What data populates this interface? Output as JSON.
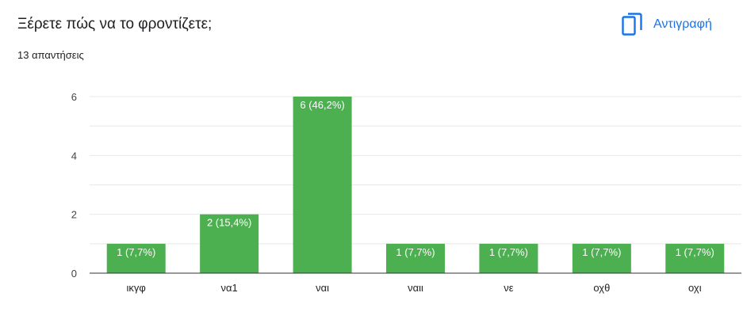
{
  "header": {
    "question": "Ξέρετε πώς να το φροντίζετε;",
    "responses": "13 απαντήσεις",
    "copy_label": "Αντιγραφή",
    "copy_icon": "copy-icon"
  },
  "colors": {
    "bar": "#4caf50",
    "accent": "#1a73e8",
    "grid": "#e8e8e8",
    "axis": "#333333"
  },
  "chart_data": {
    "type": "bar",
    "categories": [
      "ικγφ",
      "να1",
      "ναι",
      "ναιι",
      "νε",
      "οχθ",
      "οχι"
    ],
    "values": [
      1,
      2,
      6,
      1,
      1,
      1,
      1
    ],
    "data_labels": [
      "1 (7,7%)",
      "2 (15,4%)",
      "6 (46,2%)",
      "1 (7,7%)",
      "1 (7,7%)",
      "1 (7,7%)",
      "1 (7,7%)"
    ],
    "yticks": [
      0,
      2,
      4,
      6
    ],
    "ylim": [
      0,
      6
    ],
    "grid": true,
    "legend": "none",
    "title": "",
    "xlabel": "",
    "ylabel": ""
  }
}
